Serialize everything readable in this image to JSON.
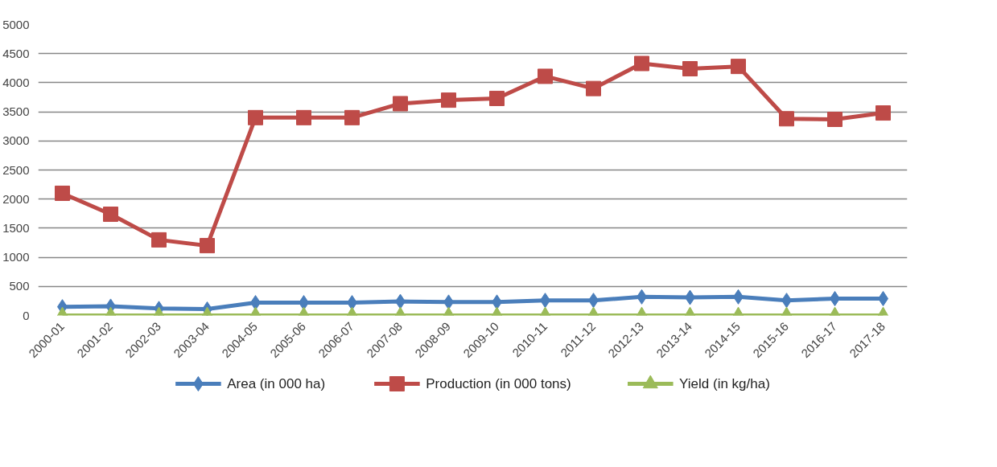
{
  "chart_data": {
    "type": "line",
    "categories": [
      "2000-01",
      "2001-02",
      "2002-03",
      "2003-04",
      "2004-05",
      "2005-06",
      "2006-07",
      "2007-08",
      "2008-09",
      "2009-10",
      "2010-11",
      "2011-12",
      "2012-13",
      "2013-14",
      "2014-15",
      "2015-16",
      "2016-17",
      "2017-18"
    ],
    "series": [
      {
        "name": "Area (in 000 ha)",
        "color": "#4a7ebb",
        "marker": "diamond",
        "values": [
          150,
          160,
          120,
          110,
          220,
          220,
          220,
          240,
          230,
          230,
          260,
          260,
          320,
          310,
          320,
          260,
          290,
          290
        ]
      },
      {
        "name": "Production (in 000 tons)",
        "color": "#be4b48",
        "marker": "square",
        "values": [
          2100,
          1740,
          1300,
          1200,
          3400,
          3400,
          3400,
          3640,
          3700,
          3730,
          4110,
          3900,
          4330,
          4240,
          4280,
          3380,
          3370,
          3480
        ]
      },
      {
        "name": "Yield (in kg/ha)",
        "color": "#9bbb59",
        "marker": "triangle",
        "values": [
          0,
          0,
          0,
          0,
          0,
          0,
          0,
          0,
          0,
          0,
          0,
          0,
          0,
          0,
          0,
          0,
          0,
          0
        ]
      }
    ],
    "ylim": [
      0,
      5000
    ],
    "yticks": [
      0,
      500,
      1000,
      1500,
      2000,
      2500,
      3000,
      3500,
      4000,
      4500,
      5000
    ],
    "grid": "y",
    "legend": "bottom",
    "line_style": "solid"
  }
}
